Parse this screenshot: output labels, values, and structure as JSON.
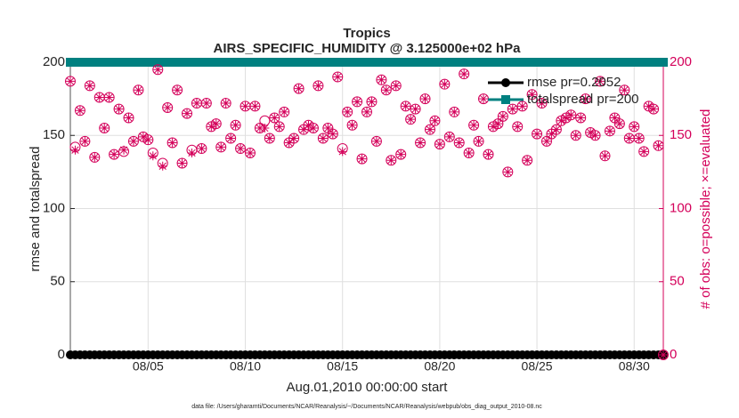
{
  "chart_data": {
    "type": "line",
    "title": "Tropics",
    "subtitle": "AIRS_SPECIFIC_HUMIDITY @ 3.125000e+02 hPa",
    "xlabel": "Aug.01,2010 00:00:00 start",
    "ylabel": "rmse and totalspread",
    "y2label": "# of obs: o=possible; ×=evaluated",
    "footnote": "data file: /Users/gharamti/Documents/NCAR/Reanalysis/~/Documents/NCAR/Reanalysis/webpub/obs_diag_output_2010-08.nc",
    "xlim": [
      1,
      31.5
    ],
    "xticks": [
      {
        "value": 5,
        "label": "08/05"
      },
      {
        "value": 10,
        "label": "08/10"
      },
      {
        "value": 15,
        "label": "08/15"
      },
      {
        "value": 20,
        "label": "08/20"
      },
      {
        "value": 25,
        "label": "08/25"
      },
      {
        "value": 30,
        "label": "08/30"
      }
    ],
    "ylim": [
      0,
      200
    ],
    "yticks": [
      0,
      50,
      100,
      150,
      200
    ],
    "y2lim": [
      0,
      200
    ],
    "y2ticks": [
      0,
      50,
      100,
      150,
      200
    ],
    "y2color": "#d4005a",
    "grid": true,
    "legend": "top-right",
    "x": [
      1,
      1.25,
      1.5,
      1.75,
      2,
      2.25,
      2.5,
      2.75,
      3,
      3.25,
      3.5,
      3.75,
      4,
      4.25,
      4.5,
      4.75,
      5,
      5.25,
      5.5,
      5.75,
      6,
      6.25,
      6.5,
      6.75,
      7,
      7.25,
      7.5,
      7.75,
      8,
      8.25,
      8.5,
      8.75,
      9,
      9.25,
      9.5,
      9.75,
      10,
      10.25,
      10.5,
      10.75,
      11,
      11.25,
      11.5,
      11.75,
      12,
      12.25,
      12.5,
      12.75,
      13,
      13.25,
      13.5,
      13.75,
      14,
      14.25,
      14.5,
      14.75,
      15,
      15.25,
      15.5,
      15.75,
      16,
      16.25,
      16.5,
      16.75,
      17,
      17.25,
      17.5,
      17.75,
      18,
      18.25,
      18.5,
      18.75,
      19,
      19.25,
      19.5,
      19.75,
      20,
      20.25,
      20.5,
      20.75,
      21,
      21.25,
      21.5,
      21.75,
      22,
      22.25,
      22.5,
      22.75,
      23,
      23.25,
      23.5,
      23.75,
      24,
      24.25,
      24.5,
      24.75,
      25,
      25.25,
      25.5,
      25.75,
      26,
      26.25,
      26.5,
      26.75,
      27,
      27.25,
      27.5,
      27.75,
      28,
      28.25,
      28.5,
      28.75,
      29,
      29.25,
      29.5,
      29.75,
      30,
      30.25,
      30.5,
      30.75,
      31,
      31.25,
      31.5
    ],
    "series": [
      {
        "name": "rmse pr=0.2052",
        "color": "#000000",
        "marker": "o",
        "line": true,
        "axis": "y",
        "values": [
          0,
          0,
          0,
          0,
          0,
          0,
          0,
          0,
          0,
          0,
          0,
          0,
          0,
          0,
          0,
          0,
          0,
          0,
          0,
          0,
          0,
          0,
          0,
          0,
          0,
          0,
          0,
          0,
          0,
          0,
          0,
          0,
          0,
          0,
          0,
          0,
          0,
          0,
          0,
          0,
          0,
          0,
          0,
          0,
          0,
          0,
          0,
          0,
          0,
          0,
          0,
          0,
          0,
          0,
          0,
          0,
          0,
          0,
          0,
          0,
          0,
          0,
          0,
          0,
          0,
          0,
          0,
          0,
          0,
          0,
          0,
          0,
          0,
          0,
          0,
          0,
          0,
          0,
          0,
          0,
          0,
          0,
          0,
          0,
          0,
          0,
          0,
          0,
          0,
          0,
          0,
          0,
          0,
          0,
          0,
          0,
          0,
          0,
          0,
          0,
          0,
          0,
          0,
          0,
          0,
          0,
          0,
          0,
          0,
          0,
          0,
          0,
          0,
          0,
          0,
          0,
          0,
          0,
          0,
          0,
          0,
          0,
          0
        ]
      },
      {
        "name": "totalspread pr=200",
        "color": "#008080",
        "marker": "s",
        "line": true,
        "axis": "y",
        "values": [
          200,
          200,
          200,
          200,
          200,
          200,
          200,
          200,
          200,
          200,
          200,
          200,
          200,
          200,
          200,
          200,
          200,
          200,
          200,
          200,
          200,
          200,
          200,
          200,
          200,
          200,
          200,
          200,
          200,
          200,
          200,
          200,
          200,
          200,
          200,
          200,
          200,
          200,
          200,
          200,
          200,
          200,
          200,
          200,
          200,
          200,
          200,
          200,
          200,
          200,
          200,
          200,
          200,
          200,
          200,
          200,
          200,
          200,
          200,
          200,
          200,
          200,
          200,
          200,
          200,
          200,
          200,
          200,
          200,
          200,
          200,
          200,
          200,
          200,
          200,
          200,
          200,
          200,
          200,
          200,
          200,
          200,
          200,
          200,
          200,
          200,
          200,
          200,
          200,
          200,
          200,
          200,
          200,
          200,
          200,
          200,
          200,
          200,
          200,
          200,
          200,
          200,
          200,
          200,
          200,
          200,
          200,
          200,
          200,
          200,
          200,
          200,
          200,
          200,
          200,
          200,
          200,
          200,
          200,
          200,
          200,
          200,
          200
        ]
      },
      {
        "color": "#d4005a",
        "marker": "o",
        "line": false,
        "axis": "y2",
        "values": [
          187,
          142,
          167,
          146,
          184,
          135,
          176,
          155,
          176,
          137,
          168,
          139,
          162,
          146,
          181,
          149,
          147,
          138,
          195,
          131,
          169,
          145,
          181,
          131,
          165,
          140,
          172,
          141,
          172,
          156,
          158,
          142,
          172,
          148,
          157,
          141,
          170,
          138,
          170,
          155,
          160,
          148,
          162,
          156,
          166,
          145,
          148,
          182,
          154,
          157,
          155,
          184,
          148,
          155,
          151,
          190,
          141,
          166,
          157,
          173,
          134,
          166,
          173,
          146,
          188,
          181,
          133,
          184,
          137,
          170,
          161,
          168,
          145,
          175,
          154,
          160,
          144,
          185,
          149,
          166,
          145,
          192,
          138,
          157,
          146,
          175,
          137,
          156,
          158,
          163,
          125,
          168,
          156,
          170,
          133,
          178,
          151,
          172,
          146,
          151,
          154,
          160,
          162,
          164,
          150,
          162,
          175,
          152,
          150,
          187,
          136,
          153,
          162,
          158,
          181,
          148,
          156,
          148,
          139,
          170,
          168,
          143,
          0
        ]
      },
      {
        "color": "#d4005a",
        "marker": "*",
        "line": false,
        "axis": "y2",
        "values": [
          187,
          140,
          167,
          146,
          184,
          135,
          176,
          155,
          176,
          137,
          168,
          140,
          162,
          146,
          181,
          149,
          147,
          136,
          195,
          129,
          169,
          145,
          181,
          131,
          165,
          138,
          172,
          141,
          172,
          156,
          158,
          142,
          172,
          148,
          157,
          141,
          170,
          138,
          170,
          155,
          155,
          148,
          162,
          156,
          166,
          145,
          148,
          182,
          154,
          157,
          155,
          184,
          148,
          155,
          151,
          190,
          139,
          166,
          157,
          173,
          134,
          166,
          173,
          146,
          188,
          181,
          133,
          184,
          137,
          170,
          161,
          168,
          145,
          175,
          154,
          160,
          144,
          185,
          149,
          166,
          145,
          192,
          138,
          157,
          146,
          175,
          137,
          156,
          158,
          163,
          125,
          168,
          156,
          170,
          133,
          178,
          151,
          172,
          146,
          151,
          154,
          160,
          162,
          164,
          150,
          162,
          175,
          152,
          150,
          187,
          136,
          153,
          162,
          158,
          181,
          148,
          156,
          148,
          139,
          170,
          168,
          143,
          0
        ]
      }
    ]
  }
}
